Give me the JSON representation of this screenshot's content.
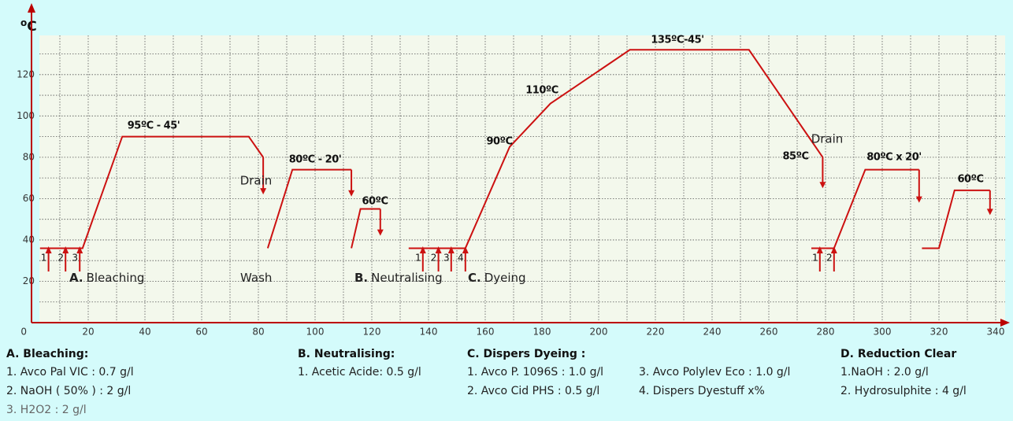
{
  "chart_data": {
    "type": "line",
    "y_unit_sup": "o",
    "y_unit": "C",
    "xlim": [
      0,
      345
    ],
    "ylim": [
      0,
      150
    ],
    "xticks": [
      20,
      40,
      60,
      80,
      100,
      120,
      140,
      160,
      180,
      200,
      220,
      240,
      260,
      280,
      300,
      320,
      340
    ],
    "yticks": [
      0,
      20,
      40,
      60,
      80,
      100,
      120
    ],
    "grid": true,
    "series": [
      {
        "color": "#cc1111",
        "x": [
          3,
          18,
          32,
          76.6,
          81.7,
          null,
          83.3,
          92,
          112.8,
          null,
          112.8,
          116,
          123,
          null,
          133,
          153,
          168.6,
          183,
          211,
          253,
          279,
          null,
          275,
          283,
          294,
          313,
          null,
          314,
          320,
          325.5,
          338
        ],
        "values": [
          36,
          36,
          90,
          90,
          80,
          null,
          36,
          74,
          74,
          null,
          36,
          55,
          55,
          null,
          36,
          36,
          85,
          106,
          132,
          132,
          80,
          null,
          36,
          36,
          74,
          74,
          null,
          36,
          36,
          64,
          64
        ]
      }
    ],
    "arrows": [
      {
        "x": 81.7,
        "from": 80,
        "to": 62
      },
      {
        "x": 112.8,
        "from": 74,
        "to": 61
      },
      {
        "x": 123,
        "from": 55,
        "to": 42
      },
      {
        "x": 279,
        "from": 80,
        "to": 65
      },
      {
        "x": 313,
        "from": 74,
        "to": 58
      },
      {
        "x": 338,
        "from": 64,
        "to": 52
      }
    ],
    "dosing": [
      {
        "x": 6,
        "label": "1"
      },
      {
        "x": 12,
        "label": "2"
      },
      {
        "x": 17,
        "label": "3"
      },
      {
        "x": 138,
        "label": "1"
      },
      {
        "x": 143.5,
        "label": "2"
      },
      {
        "x": 148,
        "label": "3"
      },
      {
        "x": 153,
        "label": "4"
      },
      {
        "x": 278,
        "label": "1"
      },
      {
        "x": 283,
        "label": "2"
      }
    ],
    "annotations": [
      "95ºC - 45'",
      "Drain",
      "80ºC - 20'",
      "60ºC",
      "90ºC",
      "110ºC",
      "135ºC-45'",
      "Drain",
      "85ºC",
      "80ºC x 20'",
      "60ºC"
    ],
    "stages": [
      {
        "key": "A.",
        "text": "Bleaching"
      },
      {
        "text": "Wash"
      },
      {
        "key": "B.",
        "text": "Neutralising"
      },
      {
        "key": "C.",
        "text": "Dyeing"
      }
    ]
  },
  "recipes": [
    {
      "title": "A. Bleaching:",
      "items": [
        "1. Avco Pal VIC : 0.7 g/l",
        "2. NaOH ( 50% ) : 2 g/l",
        "3. H2O2    : 2 g/l"
      ]
    },
    {
      "title": "B. Neutralising:",
      "items": [
        "1. Acetic Acide: 0.5 g/l"
      ]
    },
    {
      "title": "C. Dispers Dyeing :",
      "items": [
        "1. Avco P.  1096S : 1.0 g/l",
        "2. Avco Cid PHS : 0.5 g/l",
        "3. Avco Polylev Eco : 1.0 g/l",
        "4. Dispers  Dyestuff x%"
      ]
    },
    {
      "title": "D. Reduction Clear",
      "items": [
        "1.NaOH : 2.0 g/l",
        "2. Hydrosulphite : 4 g/l"
      ]
    }
  ]
}
